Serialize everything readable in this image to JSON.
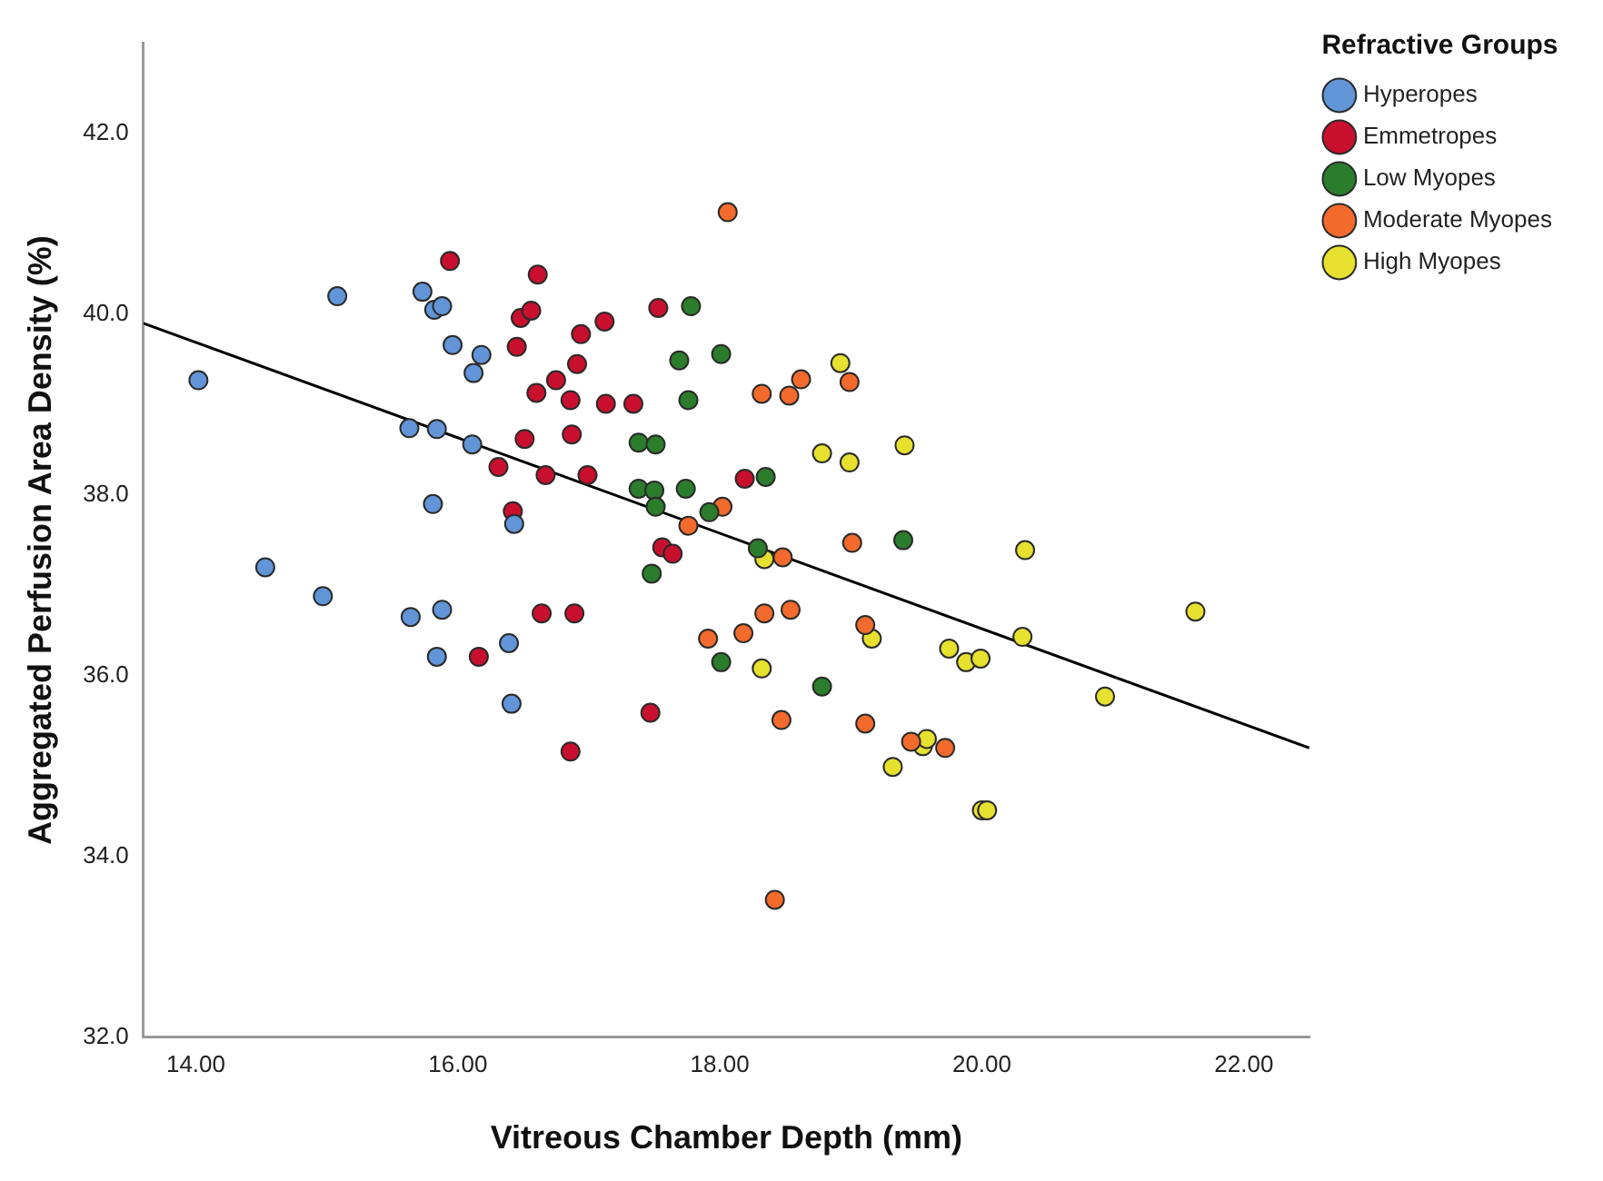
{
  "chart_data": {
    "type": "scatter",
    "xlabel": "Vitreous Chamber Depth (mm)",
    "ylabel": "Aggregated Perfusion Area Density (%)",
    "legend_title": "Refractive Groups",
    "legend": "top right",
    "grid": false,
    "marker": "circle",
    "xlim": [
      13.6,
      22.5
    ],
    "ylim": [
      32,
      43
    ],
    "xticks": [
      {
        "value": 14,
        "label": "14.00"
      },
      {
        "value": 16,
        "label": "16.00"
      },
      {
        "value": 18,
        "label": "18.00"
      },
      {
        "value": 20,
        "label": "20.00"
      },
      {
        "value": 22,
        "label": "22.00"
      }
    ],
    "yticks": [
      {
        "value": 32,
        "label": "32.0"
      },
      {
        "value": 34,
        "label": "34.0"
      },
      {
        "value": 36,
        "label": "36.0"
      },
      {
        "value": 38,
        "label": "38.0"
      },
      {
        "value": 40,
        "label": "40.0"
      },
      {
        "value": 42,
        "label": "42.0"
      }
    ],
    "series": [
      {
        "name": "Hyperopes",
        "color": "#6195d8",
        "x": [
          15.08,
          14.02,
          15.73,
          15.82,
          15.88,
          15.96,
          16.18,
          16.12,
          15.63,
          15.84,
          16.11,
          15.81,
          16.43,
          14.53,
          14.97,
          15.64,
          15.88,
          15.84,
          16.39,
          16.41
        ],
        "values": [
          40.2,
          39.27,
          40.25,
          40.05,
          40.09,
          39.66,
          39.55,
          39.35,
          38.74,
          38.73,
          38.56,
          37.9,
          37.68,
          37.2,
          36.88,
          36.65,
          36.73,
          36.21,
          36.36,
          35.69
        ]
      },
      {
        "name": "Emmetropes",
        "color": "#c8102e",
        "x": [
          15.94,
          16.16,
          16.31,
          16.42,
          16.61,
          16.48,
          16.56,
          16.45,
          16.94,
          17.12,
          16.91,
          16.75,
          16.6,
          16.86,
          17.13,
          17.34,
          17.53,
          16.51,
          16.87,
          16.67,
          16.99,
          18.19,
          17.56,
          17.64,
          16.64,
          16.89,
          17.47,
          16.86
        ],
        "values": [
          40.59,
          36.21,
          38.31,
          37.82,
          40.44,
          39.96,
          40.04,
          39.64,
          39.78,
          39.92,
          39.45,
          39.27,
          39.13,
          39.05,
          39.01,
          39.01,
          40.07,
          38.62,
          38.67,
          38.22,
          38.22,
          38.18,
          37.42,
          37.35,
          36.69,
          36.69,
          35.59,
          35.16
        ]
      },
      {
        "name": "Low Myopes",
        "color": "#2b7d2b",
        "x": [
          17.78,
          17.69,
          18.01,
          17.76,
          17.38,
          17.51,
          17.38,
          17.5,
          17.74,
          17.51,
          17.92,
          18.35,
          18.29,
          17.48,
          18.01,
          18.78,
          19.4
        ],
        "values": [
          40.09,
          39.49,
          39.56,
          39.05,
          38.58,
          38.56,
          38.07,
          38.05,
          38.07,
          37.87,
          37.81,
          38.2,
          37.41,
          37.13,
          36.15,
          35.88,
          37.5
        ]
      },
      {
        "name": "Moderate Myopes",
        "color": "#f26a2c",
        "x": [
          18.06,
          18.32,
          18.53,
          18.62,
          18.99,
          18.02,
          17.76,
          18.48,
          19.01,
          18.34,
          18.54,
          17.91,
          18.18,
          19.11,
          18.47,
          19.11,
          18.42,
          19.46,
          19.72
        ],
        "values": [
          41.13,
          39.12,
          39.1,
          39.28,
          39.25,
          37.87,
          37.66,
          37.31,
          37.47,
          36.69,
          36.73,
          36.41,
          36.47,
          36.56,
          35.51,
          35.47,
          33.52,
          35.27,
          35.2
        ]
      },
      {
        "name": "High Myopes",
        "color": "#e6e02e",
        "x": [
          18.92,
          18.78,
          18.99,
          19.41,
          18.34,
          19.16,
          18.32,
          19.32,
          20.33,
          21.63,
          20.31,
          19.75,
          19.88,
          19.99,
          20.94,
          19.55,
          19.58,
          20.0,
          20.04
        ],
        "values": [
          39.46,
          38.46,
          38.36,
          38.55,
          37.29,
          36.41,
          36.08,
          34.99,
          37.39,
          36.71,
          36.43,
          36.3,
          36.15,
          36.19,
          35.77,
          35.22,
          35.3,
          34.51,
          34.51
        ]
      },
      {
        "type": "line",
        "marker": "none",
        "color": "#000000",
        "x": [
          13.6,
          22.5
        ],
        "values": [
          39.9,
          35.2
        ]
      }
    ]
  }
}
